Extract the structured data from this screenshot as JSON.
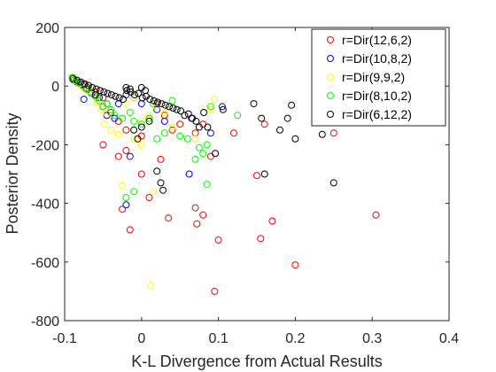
{
  "chart_data": {
    "type": "scatter",
    "title": "",
    "xlabel": "K-L Divergence from Actual Results",
    "ylabel": "Posterior Density",
    "xlim": [
      -0.1,
      0.4
    ],
    "ylim": [
      -800,
      200
    ],
    "xticks": [
      -0.1,
      0,
      0.1,
      0.2,
      0.3,
      0.4
    ],
    "xtick_labels": [
      "-0.1",
      "0",
      "0.1",
      "0.2",
      "0.3",
      "0.4"
    ],
    "yticks": [
      -800,
      -600,
      -400,
      -200,
      0,
      200
    ],
    "ytick_labels": [
      "-800",
      "-600",
      "-400",
      "-200",
      "0",
      "200"
    ],
    "grid": false,
    "legend_position": "top-right",
    "marker": "open-circle",
    "series": [
      {
        "name": "r=Dir(12,6,2)",
        "color": "#ff0000",
        "points": [
          [
            -0.09,
            25
          ],
          [
            -0.085,
            15
          ],
          [
            -0.08,
            10
          ],
          [
            -0.075,
            5
          ],
          [
            -0.07,
            -5
          ],
          [
            -0.06,
            -20
          ],
          [
            -0.05,
            -40
          ],
          [
            -0.045,
            -60
          ],
          [
            -0.04,
            -90
          ],
          [
            -0.03,
            -120
          ],
          [
            -0.02,
            -150
          ],
          [
            0.0,
            -170
          ],
          [
            0.01,
            -110
          ],
          [
            0.02,
            -60
          ],
          [
            0.03,
            -100
          ],
          [
            0.04,
            -150
          ],
          [
            0.05,
            -130
          ],
          [
            0.07,
            -160
          ],
          [
            0.08,
            -130
          ],
          [
            0.09,
            -240
          ],
          [
            0.12,
            -160
          ],
          [
            0.16,
            -130
          ],
          [
            0.25,
            -160
          ],
          [
            -0.05,
            -200
          ],
          [
            -0.02,
            -220
          ],
          [
            0.0,
            -300
          ],
          [
            0.025,
            -250
          ],
          [
            -0.025,
            -420
          ],
          [
            -0.015,
            -490
          ],
          [
            0.01,
            -380
          ],
          [
            0.035,
            -450
          ],
          [
            0.07,
            -415
          ],
          [
            0.072,
            -470
          ],
          [
            0.08,
            -440
          ],
          [
            0.1,
            -525
          ],
          [
            0.155,
            -520
          ],
          [
            0.17,
            -460
          ],
          [
            0.2,
            -610
          ],
          [
            0.095,
            -700
          ],
          [
            0.305,
            -440
          ],
          [
            0.15,
            -305
          ],
          [
            -0.03,
            -240
          ]
        ]
      },
      {
        "name": "r=Dir(10,8,2)",
        "color": "#0000ff",
        "points": [
          [
            -0.088,
            20
          ],
          [
            -0.083,
            12
          ],
          [
            -0.078,
            5
          ],
          [
            -0.072,
            -10
          ],
          [
            -0.065,
            -25
          ],
          [
            -0.055,
            -40
          ],
          [
            -0.05,
            -70
          ],
          [
            -0.045,
            -100
          ],
          [
            -0.035,
            -110
          ],
          [
            -0.03,
            -60
          ],
          [
            -0.02,
            -30
          ],
          [
            -0.01,
            -40
          ],
          [
            0.0,
            -60
          ],
          [
            0.02,
            -80
          ],
          [
            0.03,
            -120
          ],
          [
            0.065,
            -110
          ],
          [
            0.09,
            -160
          ],
          [
            0.105,
            -70
          ],
          [
            -0.02,
            -405
          ],
          [
            -0.015,
            -240
          ],
          [
            0.062,
            -300
          ],
          [
            -0.075,
            -45
          ]
        ]
      },
      {
        "name": "r=Dir(9,9,2)",
        "color": "#ffff00",
        "points": [
          [
            -0.09,
            28
          ],
          [
            -0.086,
            18
          ],
          [
            -0.081,
            8
          ],
          [
            -0.076,
            -5
          ],
          [
            -0.07,
            -15
          ],
          [
            -0.063,
            -30
          ],
          [
            -0.058,
            -55
          ],
          [
            -0.052,
            -80
          ],
          [
            -0.048,
            -130
          ],
          [
            -0.04,
            -150
          ],
          [
            -0.03,
            -165
          ],
          [
            -0.02,
            -60
          ],
          [
            -0.01,
            -40
          ],
          [
            0.0,
            -120
          ],
          [
            0.01,
            -100
          ],
          [
            0.02,
            -70
          ],
          [
            0.03,
            -90
          ],
          [
            0.04,
            -140
          ],
          [
            0.09,
            -80
          ],
          [
            0.095,
            -45
          ],
          [
            -0.045,
            -95
          ],
          [
            0.0,
            -200
          ],
          [
            -0.025,
            -340
          ],
          [
            0.015,
            -360
          ],
          [
            0.012,
            -680
          ],
          [
            -0.01,
            -180
          ],
          [
            0.07,
            -180
          ]
        ]
      },
      {
        "name": "r=Dir(8,10,2)",
        "color": "#00ff00",
        "points": [
          [
            -0.09,
            30
          ],
          [
            -0.087,
            22
          ],
          [
            -0.082,
            12
          ],
          [
            -0.077,
            2
          ],
          [
            -0.071,
            -8
          ],
          [
            -0.066,
            -20
          ],
          [
            -0.06,
            -35
          ],
          [
            -0.055,
            -50
          ],
          [
            -0.05,
            -70
          ],
          [
            -0.045,
            -60
          ],
          [
            -0.04,
            -80
          ],
          [
            -0.035,
            -100
          ],
          [
            -0.025,
            -110
          ],
          [
            -0.015,
            -90
          ],
          [
            -0.01,
            -120
          ],
          [
            0.0,
            -130
          ],
          [
            0.01,
            -110
          ],
          [
            0.02,
            -180
          ],
          [
            0.03,
            -160
          ],
          [
            0.05,
            -170
          ],
          [
            0.06,
            -180
          ],
          [
            0.07,
            -250
          ],
          [
            0.08,
            -230
          ],
          [
            0.085,
            -200
          ],
          [
            0.09,
            -70
          ],
          [
            0.125,
            -100
          ],
          [
            0.075,
            -210
          ],
          [
            0.085,
            -335
          ],
          [
            -0.02,
            -380
          ],
          [
            -0.01,
            -360
          ],
          [
            0.04,
            -50
          ],
          [
            0.015,
            -60
          ]
        ]
      },
      {
        "name": "r=Dir(6,12,2)",
        "color": "#000000",
        "points": [
          [
            -0.089,
            26
          ],
          [
            -0.084,
            20
          ],
          [
            -0.079,
            14
          ],
          [
            -0.074,
            8
          ],
          [
            -0.069,
            2
          ],
          [
            -0.064,
            -5
          ],
          [
            -0.059,
            -10
          ],
          [
            -0.054,
            -15
          ],
          [
            -0.049,
            -20
          ],
          [
            -0.044,
            -25
          ],
          [
            -0.039,
            -30
          ],
          [
            -0.034,
            -35
          ],
          [
            -0.029,
            -40
          ],
          [
            -0.024,
            -45
          ],
          [
            -0.019,
            -15
          ],
          [
            -0.014,
            -20
          ],
          [
            -0.009,
            -30
          ],
          [
            -0.004,
            -25
          ],
          [
            0.001,
            -40
          ],
          [
            0.006,
            -35
          ],
          [
            0.011,
            -45
          ],
          [
            0.016,
            -50
          ],
          [
            0.021,
            -55
          ],
          [
            0.026,
            -60
          ],
          [
            0.031,
            -65
          ],
          [
            0.036,
            -70
          ],
          [
            0.041,
            -75
          ],
          [
            0.046,
            -80
          ],
          [
            0.051,
            -85
          ],
          [
            0.056,
            -100
          ],
          [
            0.061,
            -95
          ],
          [
            0.066,
            -110
          ],
          [
            0.071,
            -120
          ],
          [
            0.081,
            -90
          ],
          [
            0.086,
            -140
          ],
          [
            0.096,
            -230
          ],
          [
            0.106,
            -80
          ],
          [
            0.146,
            -60
          ],
          [
            0.156,
            -110
          ],
          [
            0.18,
            -150
          ],
          [
            0.19,
            -110
          ],
          [
            0.195,
            -65
          ],
          [
            0.2,
            -180
          ],
          [
            0.235,
            -165
          ],
          [
            0.25,
            -330
          ],
          [
            0.16,
            -300
          ],
          [
            0.02,
            -290
          ],
          [
            0.025,
            -330
          ],
          [
            0.028,
            -355
          ],
          [
            -0.01,
            -150
          ],
          [
            0.0,
            -140
          ],
          [
            -0.005,
            -180
          ],
          [
            0.01,
            -120
          ],
          [
            0.075,
            -140
          ],
          [
            -0.02,
            -5
          ],
          [
            -0.015,
            -10
          ],
          [
            0.0,
            -5
          ],
          [
            0.005,
            -15
          ],
          [
            -0.06,
            -30
          ]
        ]
      }
    ]
  }
}
